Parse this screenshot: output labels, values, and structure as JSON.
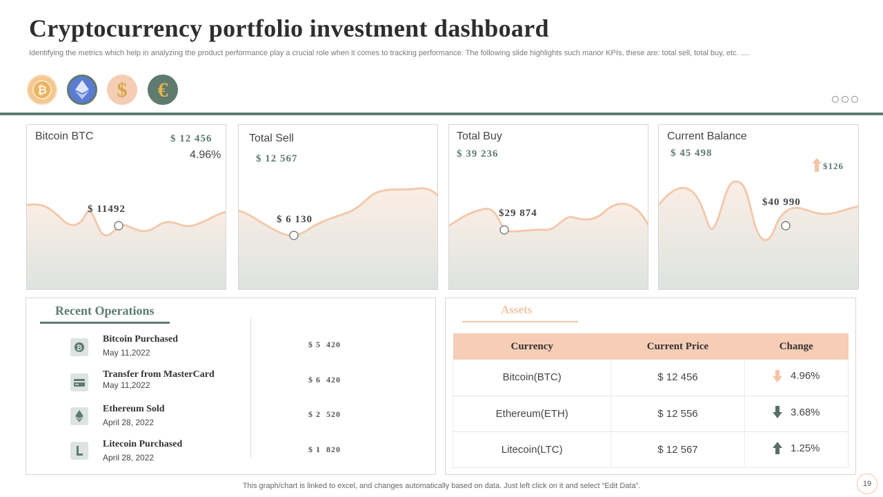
{
  "header": {
    "title": "Cryptocurrency portfolio investment dashboard",
    "subtitle": "Identifying the metrics which help in analyzing the product performance play a crucial role when it comes to tracking performance. The following slide highlights such manor KPIs, these are: total sell, total buy, etc. ...."
  },
  "coins": [
    {
      "icon": "bitcoin-coin-icon",
      "color": "#f3c78f"
    },
    {
      "icon": "ethereum-coin-icon",
      "color": "#5b7bd5"
    },
    {
      "icon": "dollar-coin-icon",
      "color": "#f5cdb5"
    },
    {
      "icon": "euro-coin-icon",
      "color": "#5f7a6e"
    }
  ],
  "cards": {
    "btc": {
      "label": "Bitcoin BTC",
      "value": "$ 12 456",
      "pct": "4.96%",
      "point": "$ 11492"
    },
    "sell": {
      "label": "Total Sell",
      "value": "$ 12 567",
      "point": "$ 6 130"
    },
    "buy": {
      "label": "Total Buy",
      "value": "$ 39 236",
      "point": "$29 874"
    },
    "balance": {
      "label": "Current Balance",
      "value": "$ 45 498",
      "change": "$126",
      "point": "$40 990"
    }
  },
  "recent": {
    "title": "Recent Operations",
    "items": [
      {
        "title": "Bitcoin Purchased",
        "date": "May 11,2022",
        "amount": "$ 5  420",
        "icon": "bitcoin-icon"
      },
      {
        "title": "Transfer from MasterCard",
        "date": "May 11,2022",
        "amount": "$ 6  420",
        "icon": "credit-card-icon"
      },
      {
        "title": "Ethereum  Sold",
        "date": "April 28, 2022",
        "amount": "$ 2  520",
        "icon": "ethereum-icon"
      },
      {
        "title": "Litecoin Purchased",
        "date": "April 28, 2022",
        "amount": "$ 1  820",
        "icon": "litecoin-icon"
      }
    ]
  },
  "assets": {
    "title": "Assets",
    "headers": [
      "Currency",
      "Current Price",
      "Change"
    ],
    "rows": [
      {
        "currency": "Bitcoin(BTC)",
        "price": "$ 12 456",
        "change": "4.96%",
        "direction": "down",
        "color": "#f6c3a6"
      },
      {
        "currency": "Ethereum(ETH)",
        "price": "$ 12 556",
        "change": "3.68%",
        "direction": "down",
        "color": "#5a6f65"
      },
      {
        "currency": "Litecoin(LTC)",
        "price": "$ 12 567",
        "change": "1.25%",
        "direction": "up",
        "color": "#5a6f65"
      }
    ]
  },
  "footer": {
    "note": "This graph/chart is linked to excel,  and changes automatically based on data. Just left click on it and select “Edit Data”.",
    "page": "19"
  },
  "colors": {
    "accent": "#5f7a6e",
    "peach": "#f2c4a8",
    "wave": "#f3c9ad"
  }
}
